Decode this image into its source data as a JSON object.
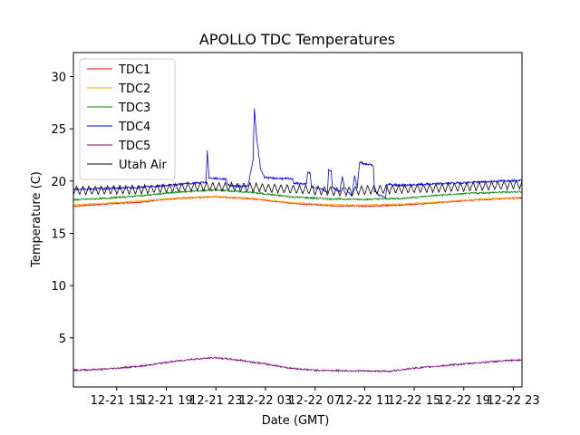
{
  "chart_data": {
    "type": "line",
    "title": "APOLLO TDC Temperatures",
    "xlabel": "Date (GMT)",
    "ylabel": "Temperature (C)",
    "xlim": [
      11.5,
      47.7
    ],
    "ylim": [
      0.3,
      32.3
    ],
    "x_ticks": [
      {
        "value": 15,
        "label": "12-21 15"
      },
      {
        "value": 19,
        "label": "12-21 19"
      },
      {
        "value": 23,
        "label": "12-21 23"
      },
      {
        "value": 27,
        "label": "12-22 03"
      },
      {
        "value": 31,
        "label": "12-22 07"
      },
      {
        "value": 35,
        "label": "12-22 11"
      },
      {
        "value": 39,
        "label": "12-22 15"
      },
      {
        "value": 43,
        "label": "12-22 19"
      },
      {
        "value": 47,
        "label": "12-22 23"
      }
    ],
    "y_ticks": [
      {
        "value": 5,
        "label": "5"
      },
      {
        "value": 10,
        "label": "10"
      },
      {
        "value": 15,
        "label": "15"
      },
      {
        "value": 20,
        "label": "20"
      },
      {
        "value": 25,
        "label": "25"
      },
      {
        "value": 30,
        "label": "30"
      }
    ],
    "legend_position": "top-left",
    "series": [
      {
        "name": "TDC1",
        "color": "#ff0000",
        "noise": 0.06,
        "points": [
          [
            11.5,
            17.6
          ],
          [
            14,
            17.8
          ],
          [
            17,
            18.0
          ],
          [
            20,
            18.35
          ],
          [
            23,
            18.5
          ],
          [
            26,
            18.3
          ],
          [
            29,
            17.9
          ],
          [
            32,
            17.65
          ],
          [
            35,
            17.6
          ],
          [
            38,
            17.7
          ],
          [
            41,
            17.95
          ],
          [
            44,
            18.2
          ],
          [
            47.7,
            18.4
          ]
        ]
      },
      {
        "name": "TDC2",
        "color": "#ffa500",
        "noise": 0.06,
        "points": [
          [
            11.5,
            17.7
          ],
          [
            14,
            17.9
          ],
          [
            17,
            18.1
          ],
          [
            20,
            18.4
          ],
          [
            23,
            18.55
          ],
          [
            26,
            18.35
          ],
          [
            29,
            17.95
          ],
          [
            32,
            17.75
          ],
          [
            35,
            17.7
          ],
          [
            38,
            17.8
          ],
          [
            41,
            18.0
          ],
          [
            44,
            18.25
          ],
          [
            47.7,
            18.45
          ]
        ]
      },
      {
        "name": "TDC3",
        "color": "#008000",
        "noise": 0.08,
        "points": [
          [
            11.5,
            18.2
          ],
          [
            14,
            18.35
          ],
          [
            17,
            18.6
          ],
          [
            20,
            18.95
          ],
          [
            23,
            19.15
          ],
          [
            26,
            18.9
          ],
          [
            29,
            18.5
          ],
          [
            32,
            18.3
          ],
          [
            35,
            18.25
          ],
          [
            38,
            18.35
          ],
          [
            41,
            18.65
          ],
          [
            44,
            18.85
          ],
          [
            47.7,
            19.0
          ]
        ]
      },
      {
        "name": "TDC4",
        "color": "#0000ff",
        "noise": 0.1,
        "points": [
          [
            11.5,
            19.2
          ],
          [
            17,
            19.4
          ],
          [
            22.2,
            19.9
          ],
          [
            22.3,
            22.9
          ],
          [
            22.45,
            20.3
          ],
          [
            23.8,
            20.2
          ],
          [
            24,
            19.6
          ],
          [
            25,
            19.5
          ],
          [
            25.6,
            19.6
          ],
          [
            26.0,
            22.0
          ],
          [
            26.1,
            26.9
          ],
          [
            26.3,
            24.0
          ],
          [
            26.6,
            21.2
          ],
          [
            26.9,
            20.4
          ],
          [
            27.3,
            20.3
          ],
          [
            29.2,
            20.2
          ],
          [
            29.3,
            19.8
          ],
          [
            30.3,
            19.7
          ],
          [
            30.4,
            20.8
          ],
          [
            30.6,
            20.8
          ],
          [
            30.7,
            19.5
          ],
          [
            31.6,
            19.2
          ],
          [
            32.0,
            18.9
          ],
          [
            32.1,
            21.1
          ],
          [
            32.3,
            21.0
          ],
          [
            32.4,
            19.4
          ],
          [
            33.0,
            19.0
          ],
          [
            33.2,
            20.4
          ],
          [
            33.4,
            19.3
          ],
          [
            34.0,
            18.6
          ],
          [
            34.2,
            20.6
          ],
          [
            34.4,
            19.3
          ],
          [
            34.6,
            21.8
          ],
          [
            34.8,
            21.7
          ],
          [
            35.7,
            21.5
          ],
          [
            35.8,
            19.0
          ],
          [
            36.2,
            18.6
          ],
          [
            36.7,
            18.5
          ],
          [
            36.8,
            19.7
          ],
          [
            38,
            19.6
          ],
          [
            44,
            19.9
          ],
          [
            47.7,
            20.1
          ]
        ]
      },
      {
        "name": "TDC5",
        "color": "#800080",
        "noise": 0.08,
        "points": [
          [
            11.5,
            1.9
          ],
          [
            14,
            2.0
          ],
          [
            17,
            2.3
          ],
          [
            19,
            2.65
          ],
          [
            21,
            2.95
          ],
          [
            23,
            3.1
          ],
          [
            25,
            2.85
          ],
          [
            27,
            2.5
          ],
          [
            29,
            2.1
          ],
          [
            31,
            1.9
          ],
          [
            34,
            1.85
          ],
          [
            37,
            1.8
          ],
          [
            39,
            2.1
          ],
          [
            42,
            2.4
          ],
          [
            45,
            2.7
          ],
          [
            47.7,
            2.9
          ]
        ]
      },
      {
        "name": "Utah Air",
        "color": "#000000",
        "noise": 0.05,
        "oscillation": {
          "period": 0.5,
          "amplitude": 0.85,
          "start": 11.5,
          "end": 47.7
        },
        "points": [
          [
            11.5,
            19.1
          ],
          [
            17,
            19.2
          ],
          [
            22,
            19.5
          ],
          [
            26,
            19.4
          ],
          [
            30,
            19.2
          ],
          [
            33,
            19.0
          ],
          [
            36,
            19.2
          ],
          [
            40,
            19.3
          ],
          [
            44,
            19.5
          ],
          [
            47.7,
            19.7
          ]
        ]
      }
    ]
  }
}
